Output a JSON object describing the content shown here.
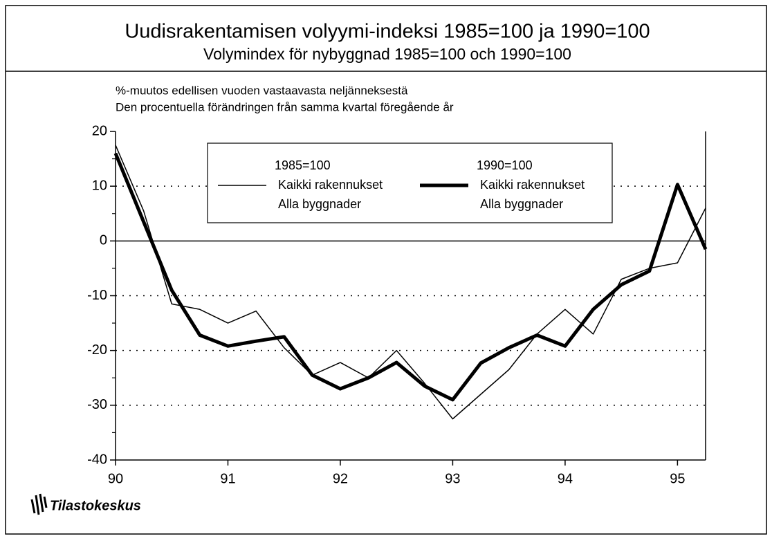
{
  "chart_data": {
    "type": "line",
    "title": "Uudisrakentamisen volyymi-indeksi 1985=100 ja 1990=100",
    "subtitle": "Volymindex för nybyggnad 1985=100 och 1990=100",
    "notes": [
      "%-muutos edellisen vuoden vastaavasta neljänneksestä",
      "Den procentuella förändringen från samma kvartal föregående år"
    ],
    "source": "Tilastokeskus",
    "x": [
      90,
      90.25,
      90.5,
      90.75,
      91,
      91.25,
      91.5,
      91.75,
      92,
      92.25,
      92.5,
      92.75,
      93,
      93.25,
      93.5,
      93.75,
      94,
      94.25,
      94.5,
      94.75,
      95,
      95.25
    ],
    "xlim": [
      90,
      95.25
    ],
    "xticks": [
      90,
      91,
      92,
      93,
      94,
      95
    ],
    "ylim": [
      -40,
      20
    ],
    "yticks": [
      -40,
      -30,
      -20,
      -10,
      0,
      10,
      20
    ],
    "grid": true,
    "series": [
      {
        "name": "1985=100",
        "legend_lines": [
          "Kaikki rakennukset",
          "Alla byggnader"
        ],
        "color": "#000000",
        "linewidth": 1.5,
        "values": [
          17.5,
          5.5,
          -11.5,
          -12.5,
          -15,
          -12.8,
          -19.5,
          -24.5,
          -22.2,
          -25,
          -20,
          -26,
          -32.5,
          -28,
          -23.5,
          -17,
          -12.5,
          -17,
          -7,
          -5,
          -4,
          6
        ]
      },
      {
        "name": "1990=100",
        "legend_lines": [
          "Kaikki rakennukset",
          "Alla byggnader"
        ],
        "color": "#000000",
        "linewidth": 5,
        "values": [
          16,
          3.5,
          -9,
          -17.2,
          -19.2,
          -18.3,
          -17.5,
          -24.5,
          -27,
          -25,
          -22.2,
          -26.5,
          -29,
          -22.3,
          -19.5,
          -17.2,
          -19.2,
          -12.5,
          -8,
          -5.5,
          10.3,
          -1.5
        ]
      }
    ]
  }
}
